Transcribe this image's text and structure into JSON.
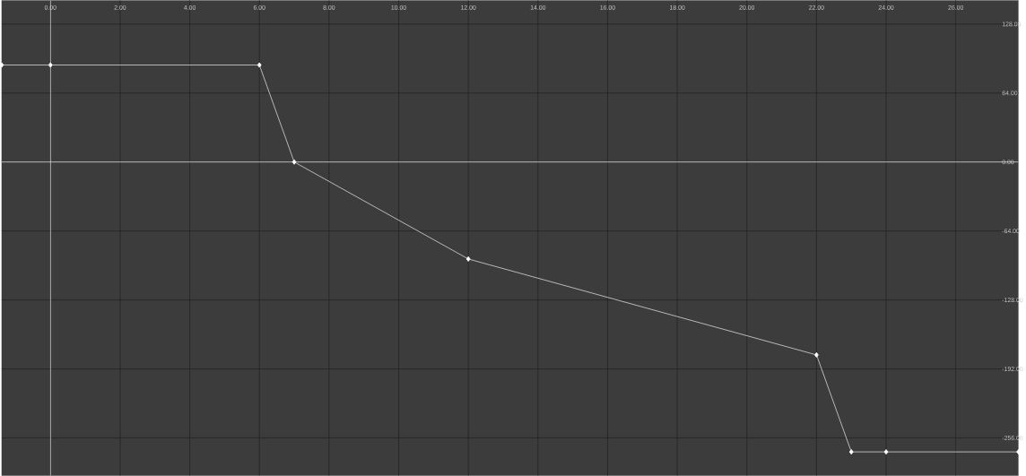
{
  "chart_data": {
    "type": "line",
    "grid": true,
    "marker": "diamond",
    "tick_labels": "xy",
    "xlim": [
      -1.4,
      27.8
    ],
    "ylim": [
      -291,
      150
    ],
    "xticks": [
      {
        "value": 0,
        "label": "0.00"
      },
      {
        "value": 2,
        "label": "2.00"
      },
      {
        "value": 4,
        "label": "4.00"
      },
      {
        "value": 6,
        "label": "6.00"
      },
      {
        "value": 8,
        "label": "8.00"
      },
      {
        "value": 10,
        "label": "10.00"
      },
      {
        "value": 12,
        "label": "12.00"
      },
      {
        "value": 14,
        "label": "14.00"
      },
      {
        "value": 16,
        "label": "16.00"
      },
      {
        "value": 18,
        "label": "18.00"
      },
      {
        "value": 20,
        "label": "20.00"
      },
      {
        "value": 22,
        "label": "22.00"
      },
      {
        "value": 24,
        "label": "24.00"
      },
      {
        "value": 26,
        "label": "26.00"
      }
    ],
    "yticks": [
      {
        "value": 128,
        "label": "128.00"
      },
      {
        "value": 64,
        "label": "64.00"
      },
      {
        "value": 0,
        "label": "0.00"
      },
      {
        "value": -64,
        "label": "-64.00"
      },
      {
        "value": -128,
        "label": "-128.00"
      },
      {
        "value": -192,
        "label": "-192.00"
      },
      {
        "value": -256,
        "label": "-256.00"
      }
    ],
    "series": [
      {
        "color": "#c8c8c8",
        "x": [
          -1.4,
          0,
          6,
          7,
          12,
          22,
          23,
          24,
          27.8
        ],
        "values": [
          90,
          90,
          90,
          0,
          -90,
          -179,
          -269,
          -269,
          -269
        ]
      }
    ]
  }
}
